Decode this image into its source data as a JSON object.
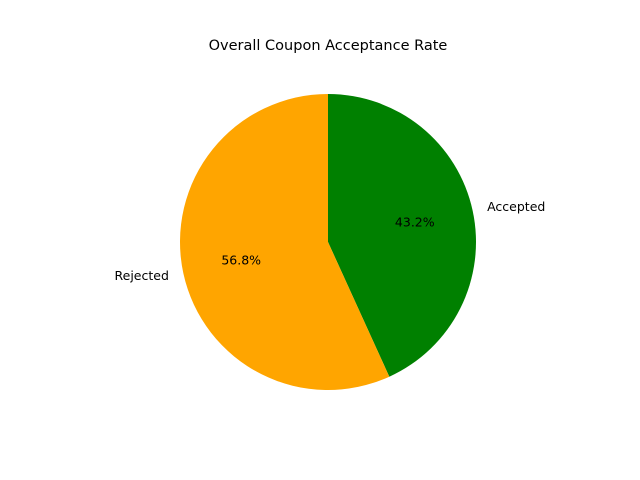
{
  "chart_data": {
    "type": "pie",
    "title": "Overall Coupon Acceptance Rate",
    "start_angle_degrees": 90,
    "direction": "clockwise",
    "slices": [
      {
        "label": "Accepted",
        "value": 43.2,
        "pct_label": "43.2%",
        "color": "#008000"
      },
      {
        "label": "Rejected",
        "value": 56.8,
        "pct_label": "56.8%",
        "color": "#FFA500"
      }
    ]
  }
}
